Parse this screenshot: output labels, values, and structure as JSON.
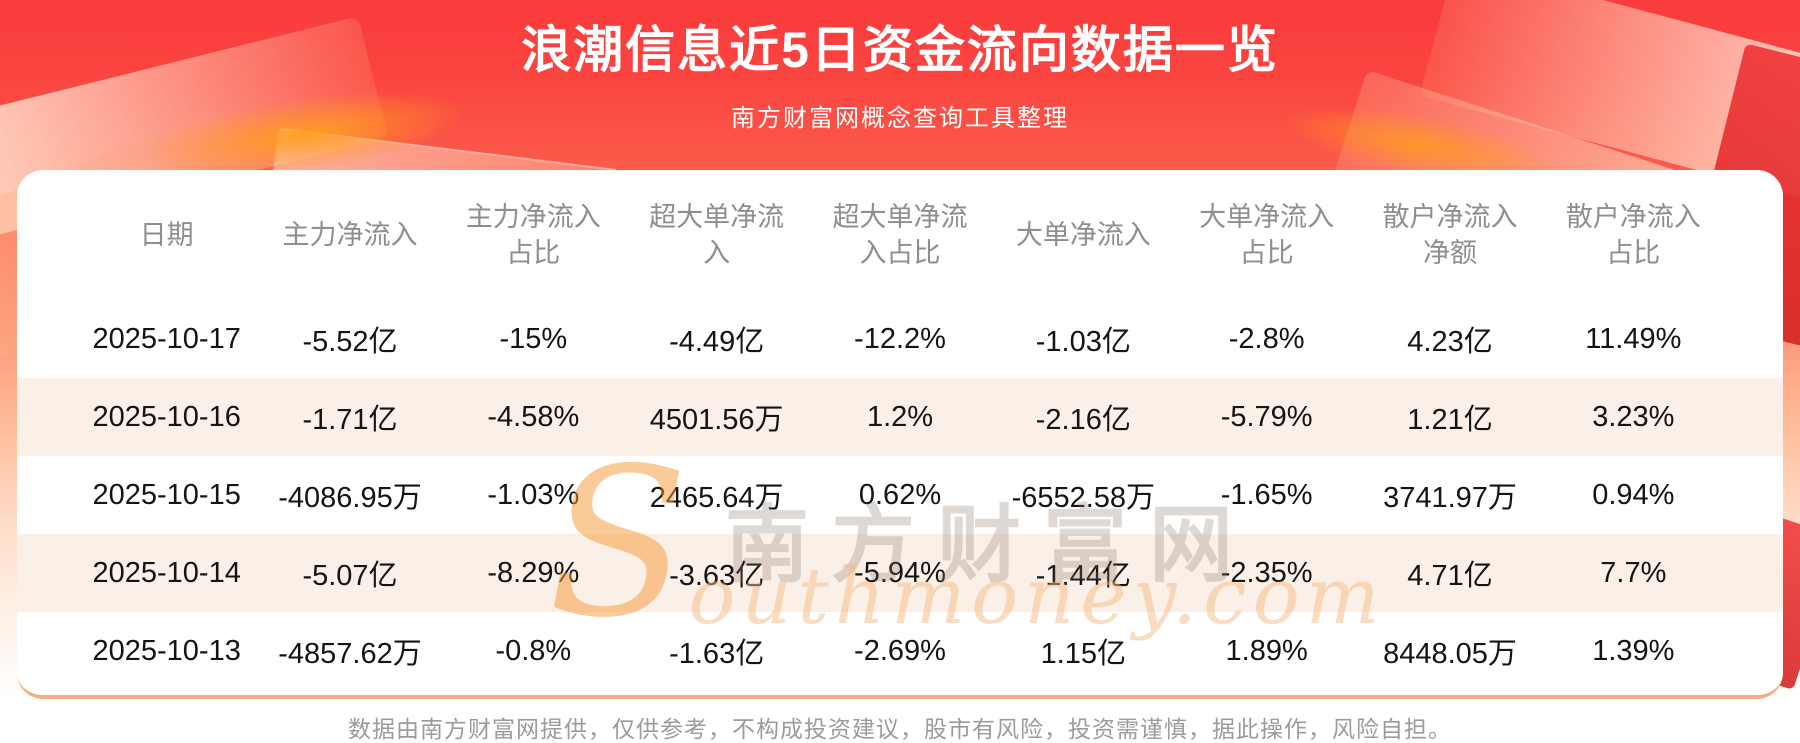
{
  "banner": {
    "title": "浪潮信息近5日资金流向数据一览",
    "subtitle": "南方财富网概念查询工具整理"
  },
  "watermark": {
    "brand_s": "S",
    "brand_rest": "outhmoney.com",
    "brand_cn": "南方财富网"
  },
  "footer": {
    "disclaimer": "数据由南方财富网提供，仅供参考，不构成投资建议，股市有风险，投资需谨慎，据此操作，风险自担。"
  },
  "colors": {
    "banner_red": "#f93b3b",
    "row_stripe": "#fbf0e7",
    "card_bg": "#ffffff",
    "header_text": "#8e8e8e",
    "body_text": "#141414",
    "footer_text": "#9b9b9b",
    "accent_orange": "#f2b184"
  },
  "chart_data": {
    "type": "table",
    "title": "浪潮信息近5日资金流向数据一览",
    "subtitle": "南方财富网概念查询工具整理",
    "columns": [
      "日期",
      "主力净流入",
      "主力净流入占比",
      "超大单净流入",
      "超大单净流入占比",
      "大单净流入",
      "大单净流入占比",
      "散户净流入净额",
      "散户净流入占比"
    ],
    "rows": [
      [
        "2025-10-17",
        "-5.52亿",
        "-15%",
        "-4.49亿",
        "-12.2%",
        "-1.03亿",
        "-2.8%",
        "4.23亿",
        "11.49%"
      ],
      [
        "2025-10-16",
        "-1.71亿",
        "-4.58%",
        "4501.56万",
        "1.2%",
        "-2.16亿",
        "-5.79%",
        "1.21亿",
        "3.23%"
      ],
      [
        "2025-10-15",
        "-4086.95万",
        "-1.03%",
        "2465.64万",
        "0.62%",
        "-6552.58万",
        "-1.65%",
        "3741.97万",
        "0.94%"
      ],
      [
        "2025-10-14",
        "-5.07亿",
        "-8.29%",
        "-3.63亿",
        "-5.94%",
        "-1.44亿",
        "-2.35%",
        "4.71亿",
        "7.7%"
      ],
      [
        "2025-10-13",
        "-4857.62万",
        "-0.8%",
        "-1.63亿",
        "-2.69%",
        "1.15亿",
        "1.89%",
        "8448.05万",
        "1.39%"
      ]
    ]
  }
}
